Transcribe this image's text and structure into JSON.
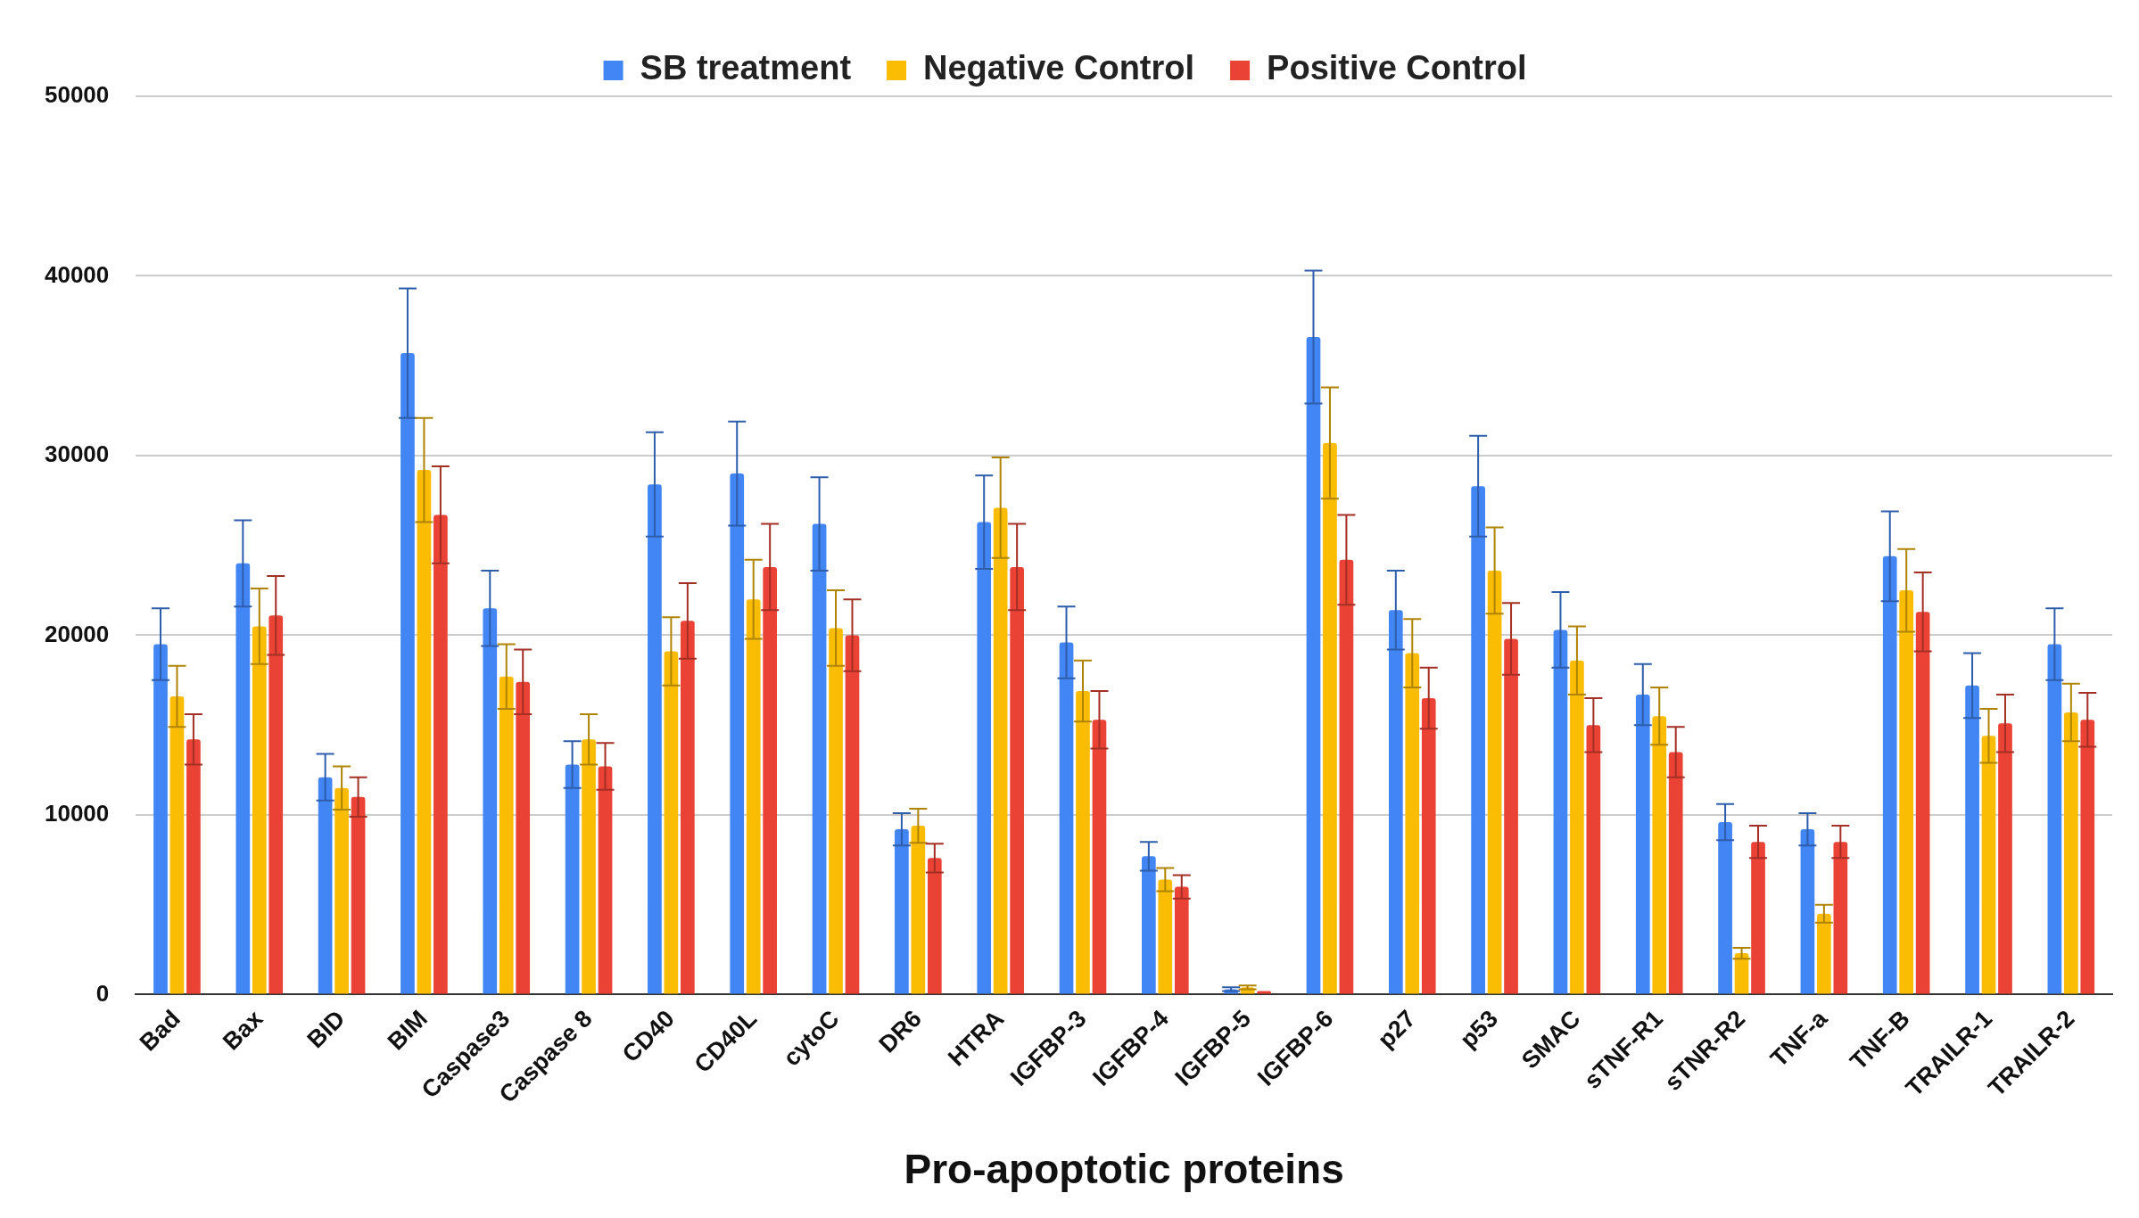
{
  "chart_data": {
    "type": "bar",
    "xlabel": "Pro-apoptotic proteins",
    "categories": [
      "Bad",
      "Bax",
      "BID",
      "BIM",
      "Caspase3",
      "Caspase 8",
      "CD40",
      "CD40L",
      "cytoC",
      "DR6",
      "HTRA",
      "IGFBP-3",
      "IGFBP-4",
      "IGFBP-5",
      "IGFBP-6",
      "p27",
      "p53",
      "SMAC",
      "sTNF-R1",
      "sTNR-R2",
      "TNF-a",
      "TNF-B",
      "TRAILR-1",
      "TRAILR-2"
    ],
    "series": [
      {
        "name": "SB treatment",
        "color": "#4285f4",
        "values": [
          19500,
          24000,
          12100,
          35700,
          21500,
          12800,
          28400,
          29000,
          26200,
          9200,
          26300,
          19600,
          7700,
          300,
          36600,
          21400,
          28300,
          20300,
          16700,
          9600,
          9200,
          24400,
          17200,
          19500
        ],
        "errors": [
          2000,
          2400,
          1300,
          3600,
          2100,
          1300,
          2900,
          2900,
          2600,
          900,
          2600,
          2000,
          800,
          100,
          3700,
          2200,
          2800,
          2100,
          1700,
          1000,
          900,
          2500,
          1800,
          2000
        ]
      },
      {
        "name": "Negative Control",
        "color": "#fbbc04",
        "values": [
          16600,
          20500,
          11500,
          29200,
          17700,
          14200,
          19100,
          22000,
          20400,
          9400,
          27100,
          16900,
          6400,
          400,
          30700,
          19000,
          23600,
          18600,
          15500,
          2300,
          4500,
          22500,
          14400,
          15700
        ],
        "errors": [
          1700,
          2100,
          1200,
          2900,
          1800,
          1400,
          1900,
          2200,
          2100,
          950,
          2800,
          1700,
          650,
          100,
          3100,
          1900,
          2400,
          1900,
          1600,
          300,
          500,
          2300,
          1500,
          1600
        ]
      },
      {
        "name": "Positive Control",
        "color": "#ea4335",
        "values": [
          14200,
          21100,
          11000,
          26700,
          17400,
          12700,
          20800,
          23800,
          20000,
          7600,
          23800,
          15300,
          6000,
          200,
          24200,
          16500,
          19800,
          15000,
          13500,
          8500,
          8500,
          21300,
          15100,
          15300
        ],
        "errors": [
          1400,
          2200,
          1100,
          2700,
          1800,
          1300,
          2100,
          2400,
          2000,
          800,
          2400,
          1600,
          650,
          null,
          2500,
          1700,
          2000,
          1500,
          1400,
          900,
          900,
          2200,
          1600,
          1500
        ]
      }
    ],
    "ylim": [
      0,
      50000
    ],
    "yticks": [
      0,
      10000,
      20000,
      30000,
      40000,
      50000
    ],
    "grid": "y",
    "legend": "top"
  }
}
